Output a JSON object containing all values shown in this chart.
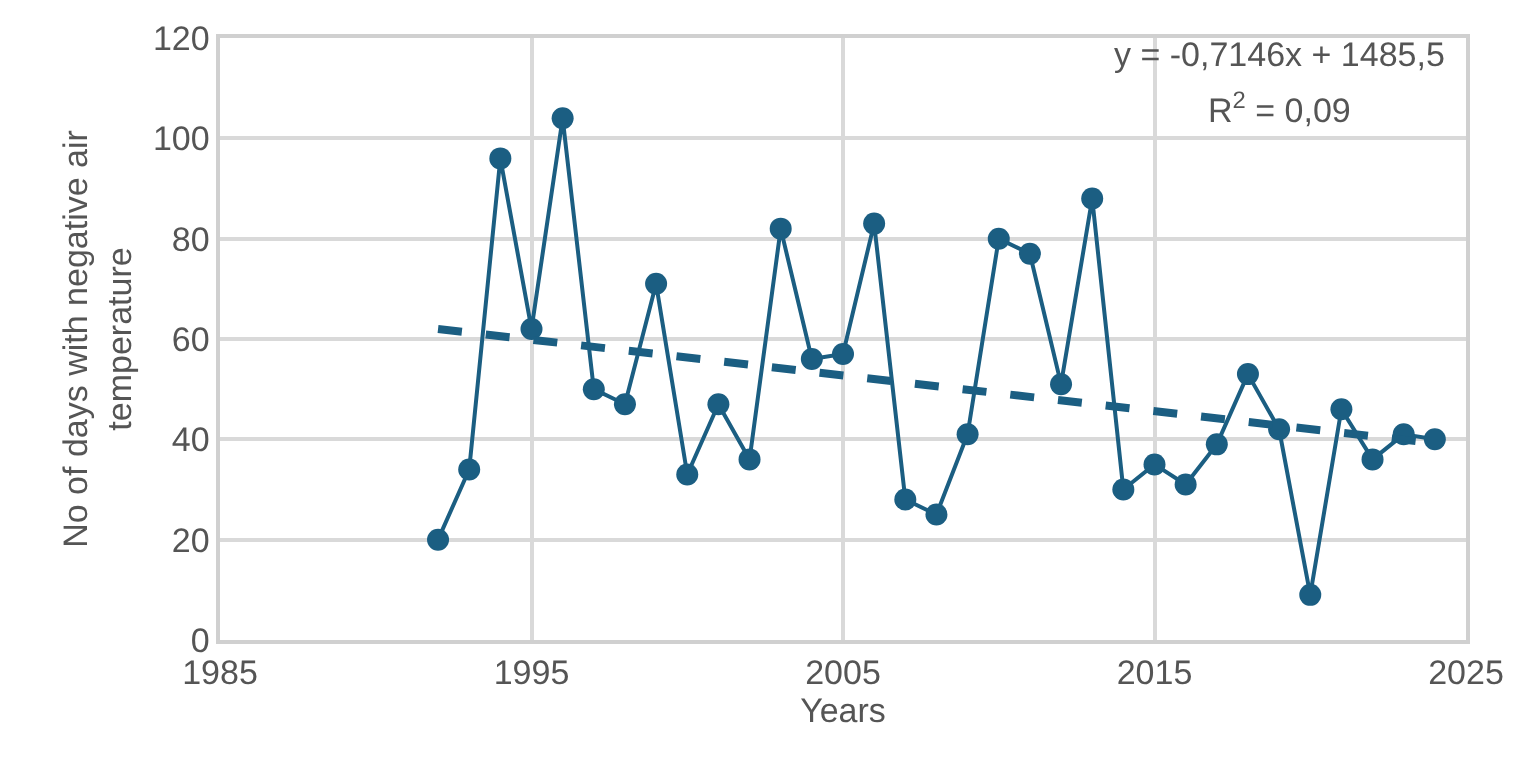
{
  "chart_data": {
    "type": "line",
    "xlabel": "Years",
    "ylabel": "No of days with negative air temperature",
    "x": [
      1992,
      1993,
      1994,
      1995,
      1996,
      1997,
      1998,
      1999,
      2000,
      2001,
      2002,
      2003,
      2004,
      2005,
      2006,
      2007,
      2008,
      2009,
      2010,
      2011,
      2012,
      2013,
      2014,
      2015,
      2016,
      2017,
      2018,
      2019,
      2020,
      2021,
      2022,
      2023,
      2024
    ],
    "series": [
      {
        "color": "#1b5e82",
        "marker": "circle",
        "line_style": "solid",
        "values": [
          20,
          34,
          96,
          62,
          104,
          50,
          47,
          71,
          33,
          47,
          36,
          82,
          56,
          57,
          83,
          28,
          25,
          41,
          80,
          77,
          51,
          88,
          30,
          35,
          31,
          39,
          53,
          42,
          9,
          46,
          36,
          41,
          40
        ]
      },
      {
        "type": "line",
        "color": "#1b5e82",
        "marker": "none",
        "line_style": "dashed",
        "x": [
          1992,
          2024
        ],
        "values": [
          62.0,
          39.2
        ]
      }
    ],
    "annotations": [
      "y = -0,7146x + 1485,5",
      "R$^{2}$ = 0,09"
    ],
    "xlim": [
      1985,
      2025
    ],
    "xticks": [
      1985,
      1995,
      2005,
      2015,
      2025
    ],
    "ylim": [
      0,
      120
    ],
    "yticks": [
      0,
      20,
      40,
      60,
      80,
      100,
      120
    ],
    "grid": true
  }
}
